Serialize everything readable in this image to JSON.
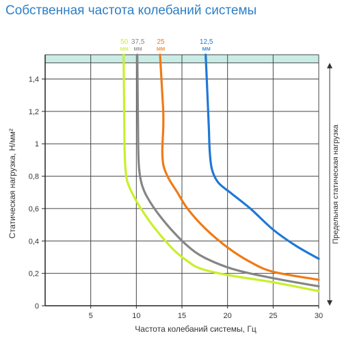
{
  "title": "Собственная частота колебаний системы",
  "chart_data": {
    "type": "line",
    "title": "Собственная частота колебаний системы",
    "xlabel": "Частота колебаний системы, Гц",
    "ylabel": "Статическая нагрузка, Н/мм²",
    "right_label": "Предельная статическая нагрузка",
    "xlim": [
      0,
      30
    ],
    "ylim": [
      0,
      1.5
    ],
    "x_ticks": [
      "5",
      "10",
      "15",
      "20",
      "25",
      "30"
    ],
    "y_ticks": [
      "0",
      "0,2",
      "0,4",
      "0,6",
      "0,8",
      "1",
      "1,2",
      "1,4"
    ],
    "grid": true,
    "limit_band": [
      1.5,
      1.55
    ],
    "series": [
      {
        "name": "50 мм",
        "label_top": "50",
        "label_unit": "мм",
        "color": "#c8f02a",
        "points": [
          [
            8.6,
            1.55
          ],
          [
            8.65,
            1.3
          ],
          [
            8.7,
            1.0
          ],
          [
            8.8,
            0.85
          ],
          [
            9.0,
            0.77
          ],
          [
            9.5,
            0.7
          ],
          [
            10.5,
            0.6
          ],
          [
            12,
            0.48
          ],
          [
            14,
            0.35
          ],
          [
            15.5,
            0.28
          ],
          [
            17,
            0.23
          ],
          [
            20,
            0.19
          ],
          [
            25,
            0.145
          ],
          [
            30,
            0.09
          ]
        ]
      },
      {
        "name": "37,5 мм",
        "label_top": "37,5",
        "label_unit": "мм",
        "color": "#858585",
        "points": [
          [
            10.1,
            1.55
          ],
          [
            10.15,
            1.3
          ],
          [
            10.2,
            1.0
          ],
          [
            10.3,
            0.85
          ],
          [
            10.6,
            0.75
          ],
          [
            11.2,
            0.67
          ],
          [
            12.5,
            0.56
          ],
          [
            14.5,
            0.43
          ],
          [
            16.5,
            0.33
          ],
          [
            18.5,
            0.27
          ],
          [
            21,
            0.22
          ],
          [
            25,
            0.17
          ],
          [
            30,
            0.12
          ]
        ]
      },
      {
        "name": "25 мм",
        "label_top": "25",
        "label_unit": "мм",
        "color": "#ef7a16",
        "points": [
          [
            12.6,
            1.55
          ],
          [
            12.8,
            1.35
          ],
          [
            12.95,
            1.2
          ],
          [
            12.95,
            1.1
          ],
          [
            12.85,
            0.95
          ],
          [
            13.0,
            0.86
          ],
          [
            13.6,
            0.78
          ],
          [
            14.5,
            0.7
          ],
          [
            15.6,
            0.6
          ],
          [
            17.5,
            0.48
          ],
          [
            20,
            0.36
          ],
          [
            22.5,
            0.27
          ],
          [
            25,
            0.21
          ],
          [
            30,
            0.16
          ]
        ]
      },
      {
        "name": "12,5 мм",
        "label_top": "12,5",
        "label_unit": "мм",
        "color": "#1f78d6",
        "points": [
          [
            17.6,
            1.55
          ],
          [
            17.8,
            1.3
          ],
          [
            17.95,
            1.1
          ],
          [
            18.05,
            0.95
          ],
          [
            18.3,
            0.84
          ],
          [
            19.0,
            0.76
          ],
          [
            20.5,
            0.69
          ],
          [
            22.5,
            0.6
          ],
          [
            25,
            0.47
          ],
          [
            27.5,
            0.37
          ],
          [
            30,
            0.29
          ]
        ]
      }
    ]
  }
}
